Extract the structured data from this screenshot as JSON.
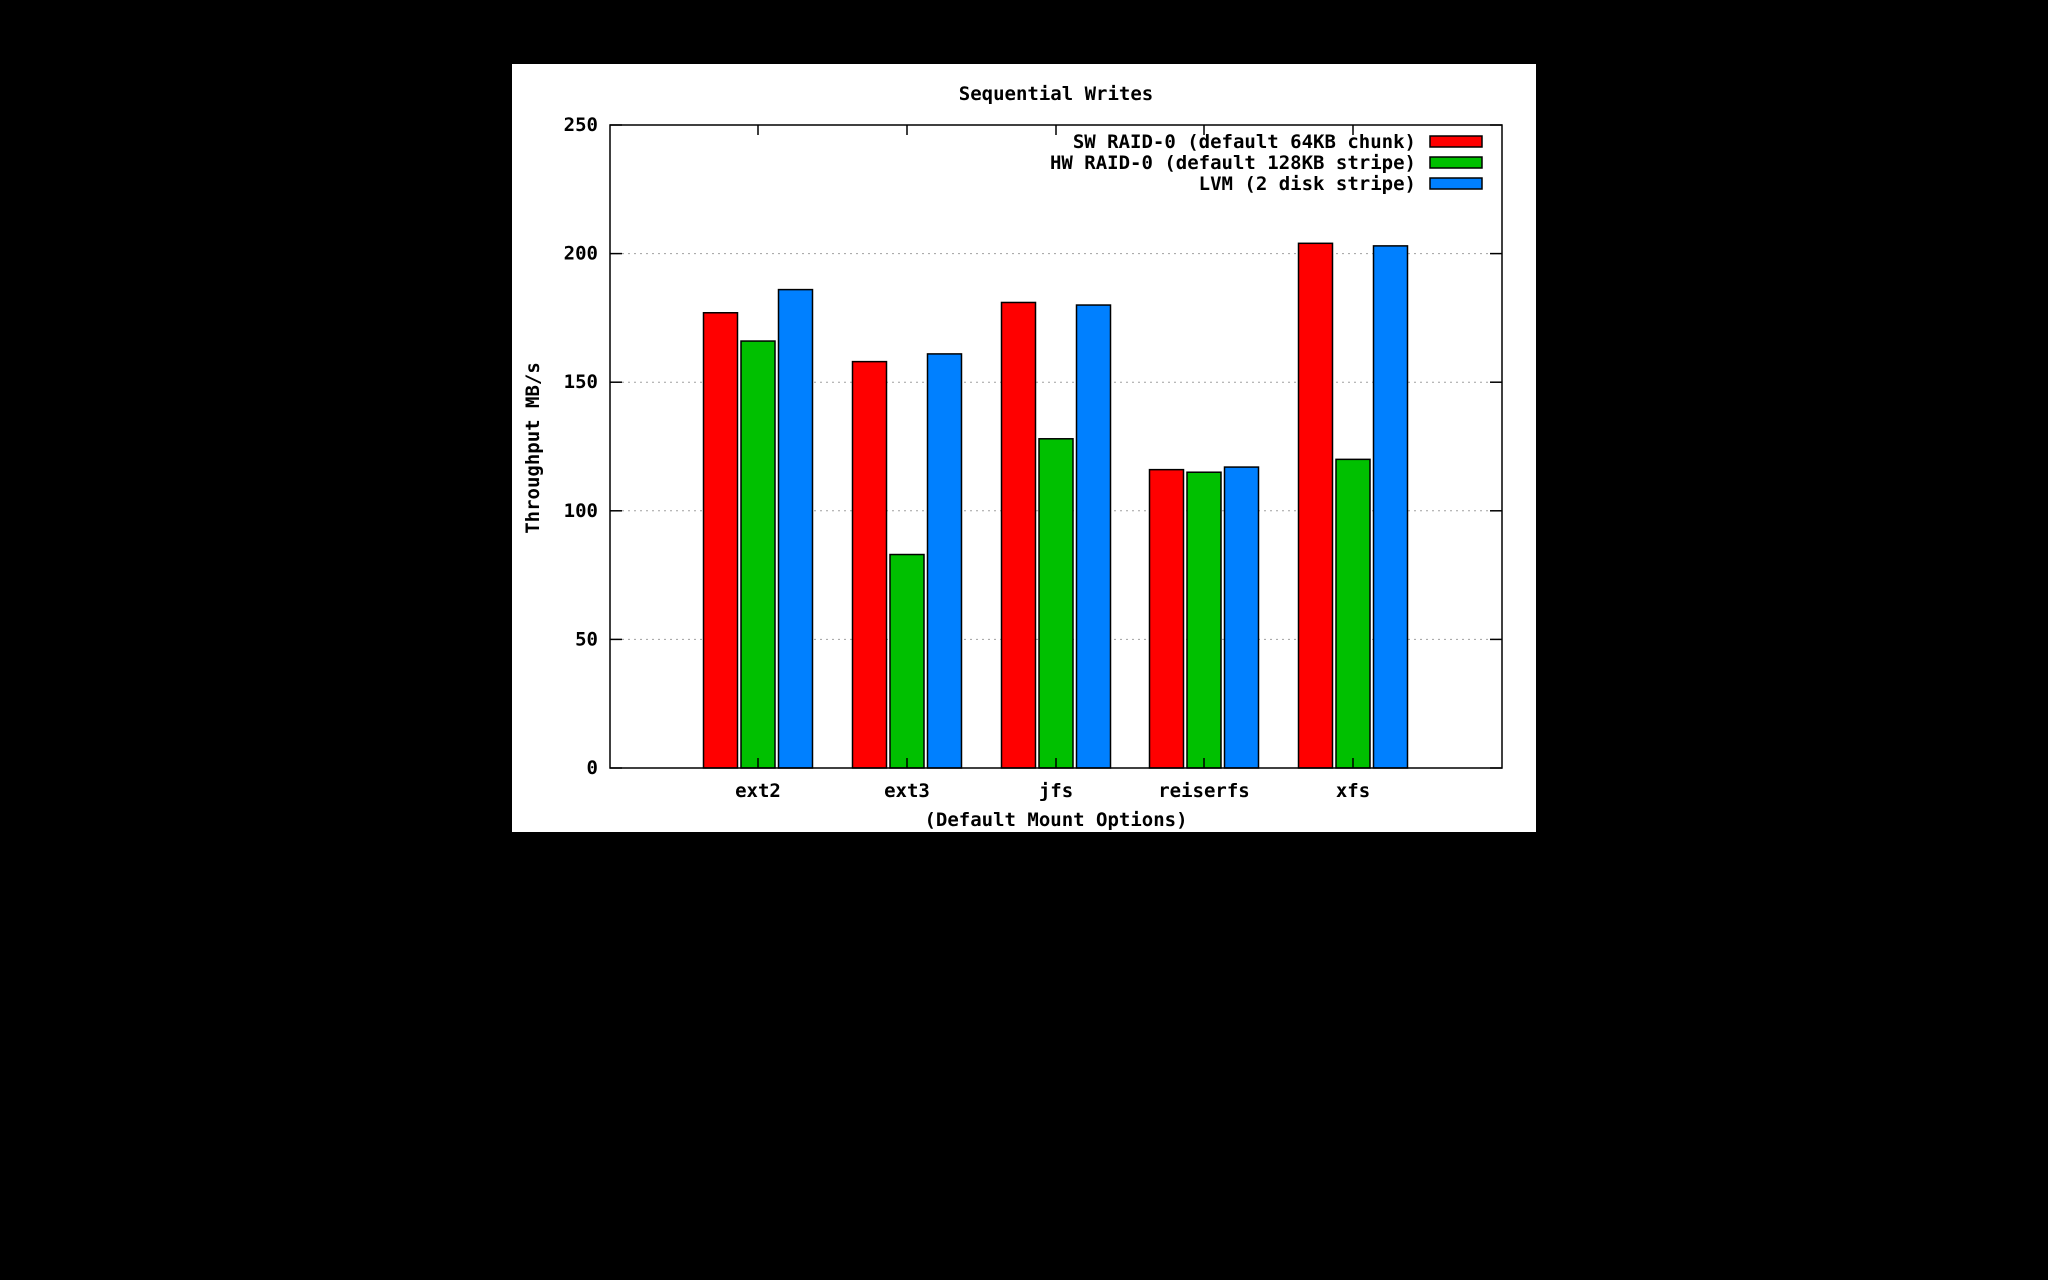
{
  "chart_data": {
    "type": "bar",
    "title": "Sequential Writes",
    "xlabel": "(Default Mount Options)",
    "ylabel": "Throughput MB/s",
    "ylim": [
      0,
      250
    ],
    "yticks": [
      "0",
      "50",
      "100",
      "150",
      "200",
      "250"
    ],
    "grid": true,
    "legend_position": "top-right",
    "categories": [
      "ext2",
      "ext3",
      "jfs",
      "reiserfs",
      "xfs"
    ],
    "series": [
      {
        "name": "SW RAID-0 (default 64KB chunk)",
        "color": "#ff0000",
        "values": [
          177,
          158,
          181,
          116,
          204
        ]
      },
      {
        "name": "HW RAID-0 (default 128KB stripe)",
        "color": "#00c000",
        "values": [
          166,
          83,
          128,
          115,
          120
        ]
      },
      {
        "name": "LVM (2 disk stripe)",
        "color": "#0080ff",
        "values": [
          186,
          161,
          180,
          117,
          203
        ]
      }
    ]
  }
}
